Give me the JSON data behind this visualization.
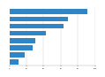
{
  "values": [
    91,
    68,
    63,
    43,
    30,
    27,
    18,
    11
  ],
  "bar_color": "#2e86c8",
  "background_color": "#ffffff",
  "xlim": [
    0,
    100
  ],
  "bar_height": 0.72,
  "grid_color": "#cccccc"
}
